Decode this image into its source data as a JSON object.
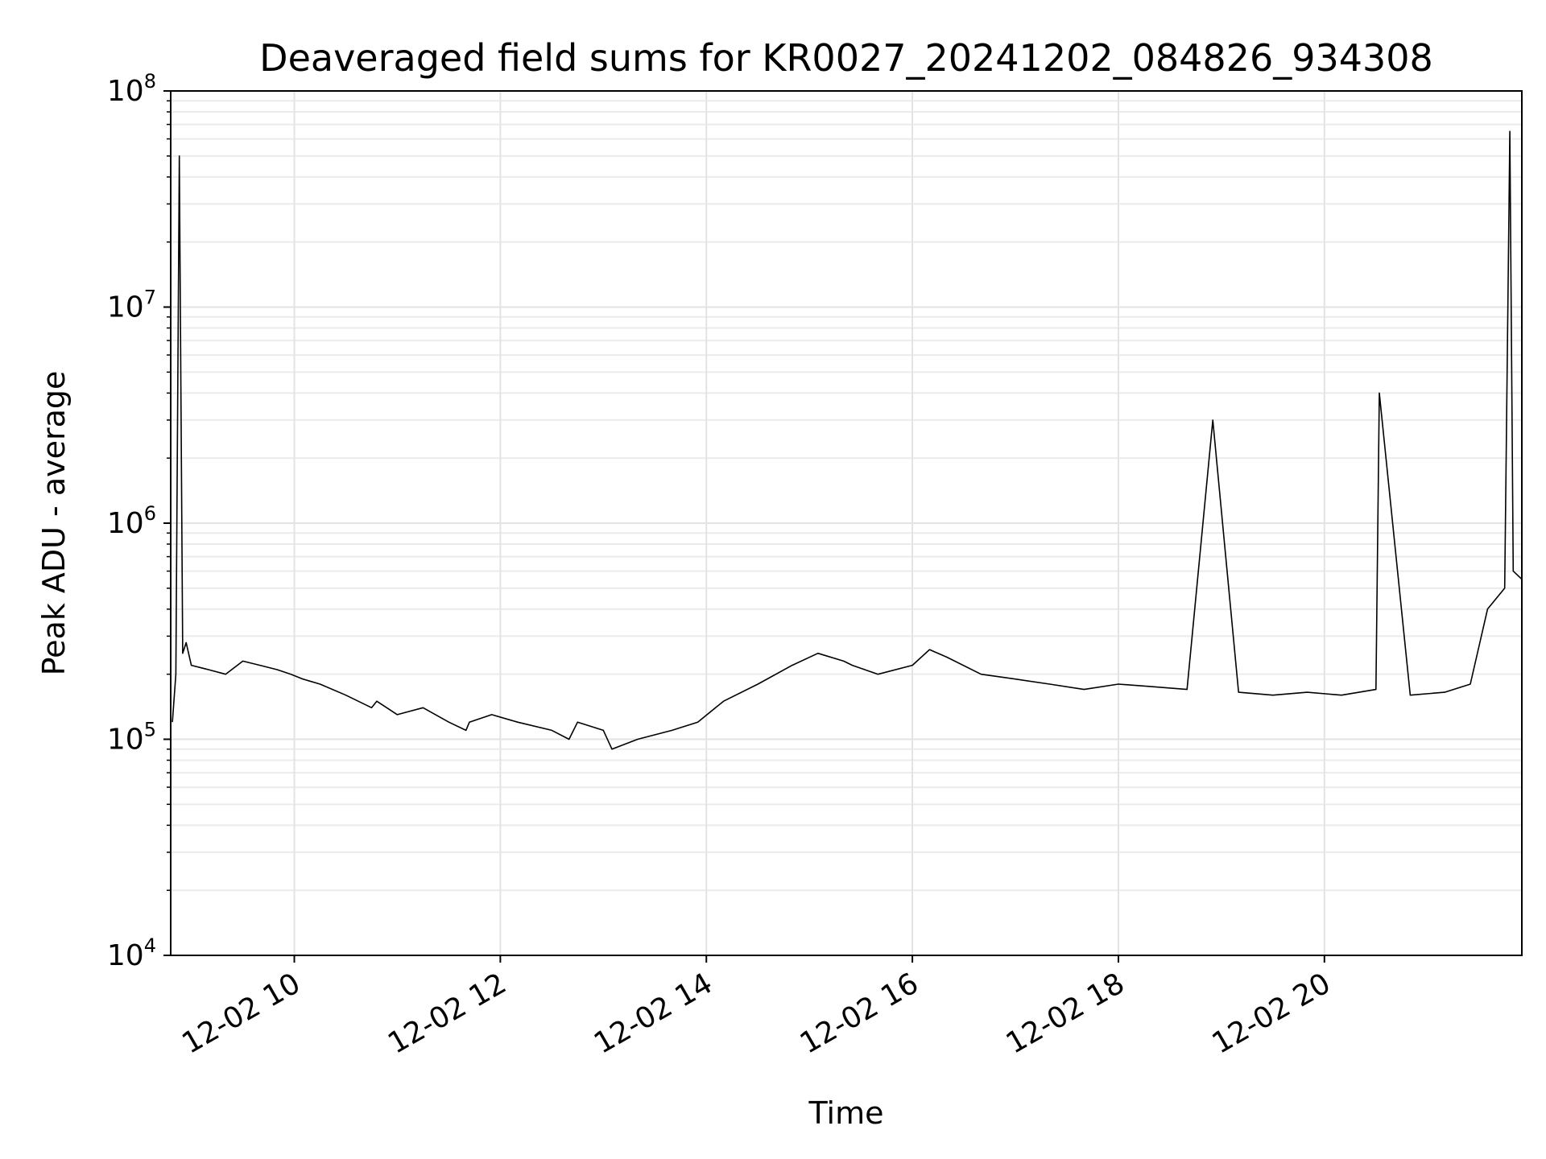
{
  "chart_data": {
    "type": "line",
    "title": "Deaveraged field sums for KR0027_20241202_084826_934308",
    "xlabel": "Time",
    "ylabel": "Peak ADU - average",
    "yscale": "log",
    "ylim": [
      10000,
      100000000
    ],
    "xlim": [
      "2024-12-02 08:48",
      "2024-12-02 21:55"
    ],
    "grid": true,
    "line_color": "#000000",
    "x_ticks": [
      {
        "value": "2024-12-02 10:00",
        "label": "12-02 10"
      },
      {
        "value": "2024-12-02 12:00",
        "label": "12-02 12"
      },
      {
        "value": "2024-12-02 14:00",
        "label": "12-02 14"
      },
      {
        "value": "2024-12-02 16:00",
        "label": "12-02 16"
      },
      {
        "value": "2024-12-02 18:00",
        "label": "12-02 18"
      },
      {
        "value": "2024-12-02 20:00",
        "label": "12-02 20"
      }
    ],
    "y_ticks": [
      {
        "value": 10000,
        "base": "10",
        "exp": "4"
      },
      {
        "value": 100000,
        "base": "10",
        "exp": "5"
      },
      {
        "value": 1000000,
        "base": "10",
        "exp": "6"
      },
      {
        "value": 10000000,
        "base": "10",
        "exp": "7"
      },
      {
        "value": 100000000,
        "base": "10",
        "exp": "8"
      }
    ],
    "series": [
      {
        "x": [
          "2024-12-02 08:49",
          "2024-12-02 08:51",
          "2024-12-02 08:53",
          "2024-12-02 08:55",
          "2024-12-02 08:57",
          "2024-12-02 09:00",
          "2024-12-02 09:10",
          "2024-12-02 09:20",
          "2024-12-02 09:30",
          "2024-12-02 09:40",
          "2024-12-02 09:50",
          "2024-12-02 09:58",
          "2024-12-02 10:05",
          "2024-12-02 10:15",
          "2024-12-02 10:30",
          "2024-12-02 10:45",
          "2024-12-02 10:48",
          "2024-12-02 11:00",
          "2024-12-02 11:15",
          "2024-12-02 11:30",
          "2024-12-02 11:40",
          "2024-12-02 11:42",
          "2024-12-02 11:55",
          "2024-12-02 12:10",
          "2024-12-02 12:30",
          "2024-12-02 12:40",
          "2024-12-02 12:45",
          "2024-12-02 13:00",
          "2024-12-02 13:05",
          "2024-12-02 13:20",
          "2024-12-02 13:40",
          "2024-12-02 13:55",
          "2024-12-02 14:10",
          "2024-12-02 14:30",
          "2024-12-02 14:50",
          "2024-12-02 15:05",
          "2024-12-02 15:20",
          "2024-12-02 15:25",
          "2024-12-02 15:40",
          "2024-12-02 16:00",
          "2024-12-02 16:10",
          "2024-12-02 16:20",
          "2024-12-02 16:40",
          "2024-12-02 17:00",
          "2024-12-02 17:20",
          "2024-12-02 17:40",
          "2024-12-02 18:00",
          "2024-12-02 18:20",
          "2024-12-02 18:40",
          "2024-12-02 18:55",
          "2024-12-02 19:10",
          "2024-12-02 19:30",
          "2024-12-02 19:50",
          "2024-12-02 20:10",
          "2024-12-02 20:30",
          "2024-12-02 20:32",
          "2024-12-02 20:50",
          "2024-12-02 21:10",
          "2024-12-02 21:25",
          "2024-12-02 21:35",
          "2024-12-02 21:45",
          "2024-12-02 21:48",
          "2024-12-02 21:50",
          "2024-12-02 21:55"
        ],
        "y": [
          120000,
          200000,
          50000000,
          250000,
          280000,
          220000,
          210000,
          200000,
          230000,
          220000,
          210000,
          200000,
          190000,
          180000,
          160000,
          140000,
          150000,
          130000,
          140000,
          120000,
          110000,
          120000,
          130000,
          120000,
          110000,
          100000,
          120000,
          110000,
          90000,
          100000,
          110000,
          120000,
          150000,
          180000,
          220000,
          250000,
          230000,
          220000,
          200000,
          220000,
          260000,
          240000,
          200000,
          190000,
          180000,
          170000,
          180000,
          175000,
          170000,
          3000000,
          165000,
          160000,
          165000,
          160000,
          170000,
          4000000,
          160000,
          165000,
          180000,
          400000,
          500000,
          65000000,
          600000,
          550000
        ]
      }
    ]
  }
}
